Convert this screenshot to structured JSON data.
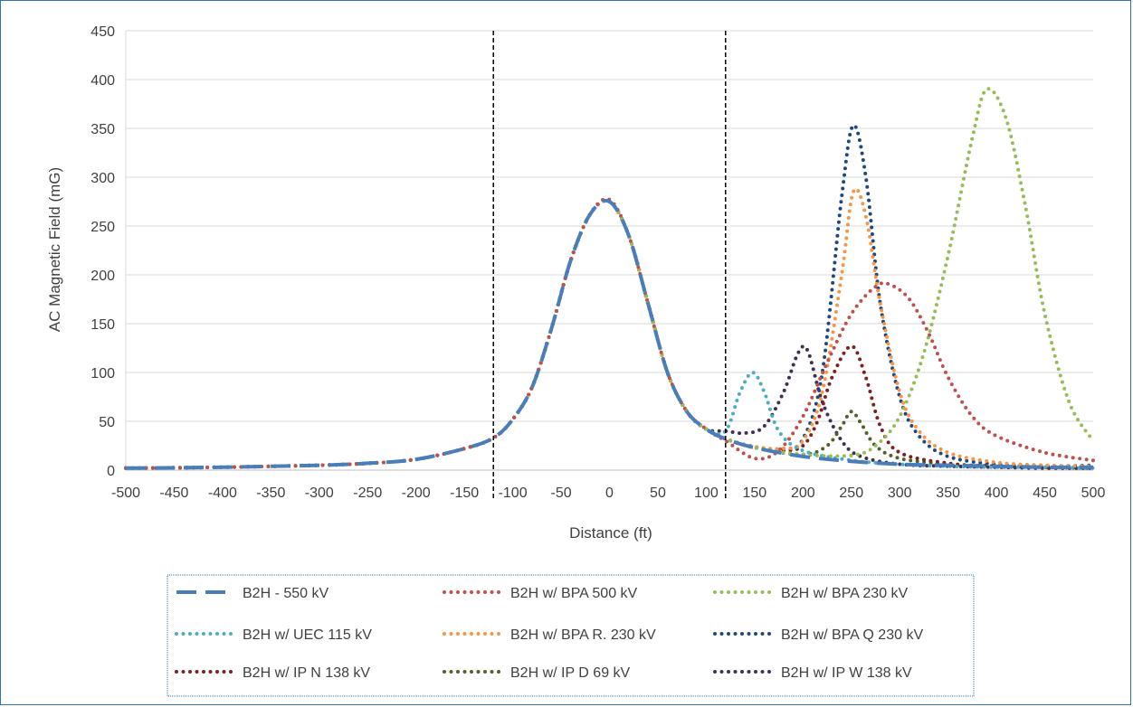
{
  "chart_data": {
    "type": "line",
    "title": "",
    "xlabel": "Distance (ft)",
    "ylabel": "AC Magnetic Field (mG)",
    "xlim": [
      -500,
      500
    ],
    "ylim": [
      0,
      450
    ],
    "x_ticks": [
      -500,
      -450,
      -400,
      -350,
      -300,
      -250,
      -200,
      -150,
      -100,
      -50,
      0,
      50,
      100,
      150,
      200,
      250,
      300,
      350,
      400,
      450,
      500
    ],
    "y_ticks": [
      0,
      50,
      100,
      150,
      200,
      250,
      300,
      350,
      400,
      450
    ],
    "grid": "horizontal",
    "legend_position": "bottom",
    "vertical_markers": [
      -120,
      120
    ],
    "series": [
      {
        "name": "B2H - 550 kV",
        "color": "#4a7ebb",
        "style": "dash",
        "x": [
          -500,
          -400,
          -300,
          -250,
          -200,
          -150,
          -120,
          -100,
          -80,
          -60,
          -40,
          -20,
          0,
          20,
          40,
          60,
          80,
          100,
          120,
          150,
          200,
          250,
          300,
          350,
          400,
          450,
          500
        ],
        "y": [
          2,
          3,
          5,
          7,
          11,
          22,
          33,
          52,
          85,
          145,
          215,
          262,
          275,
          240,
          170,
          100,
          60,
          42,
          32,
          23,
          14,
          9,
          6,
          5,
          4,
          3,
          3
        ]
      },
      {
        "name": "B2H w/ BPA 500 kV",
        "color": "#c0504d",
        "style": "dot",
        "x": [
          -500,
          -400,
          -300,
          -250,
          -200,
          -150,
          -120,
          -100,
          -80,
          -60,
          -40,
          -20,
          0,
          20,
          40,
          60,
          80,
          100,
          120,
          150,
          175,
          200,
          225,
          250,
          275,
          290,
          310,
          330,
          350,
          375,
          400,
          450,
          500
        ],
        "y": [
          2,
          3,
          5,
          7,
          11,
          22,
          33,
          52,
          85,
          145,
          215,
          262,
          277,
          240,
          170,
          100,
          60,
          42,
          30,
          12,
          20,
          55,
          110,
          160,
          188,
          190,
          175,
          140,
          95,
          55,
          35,
          18,
          10
        ]
      },
      {
        "name": "B2H w/ BPA 230 kV",
        "color": "#9bbb59",
        "style": "dot",
        "x": [
          -500,
          -400,
          -300,
          -250,
          -200,
          -150,
          -120,
          -100,
          -80,
          -60,
          -40,
          -20,
          0,
          20,
          40,
          60,
          80,
          100,
          120,
          150,
          200,
          250,
          275,
          300,
          325,
          350,
          375,
          390,
          410,
          430,
          450,
          475,
          500
        ],
        "y": [
          2,
          3,
          5,
          7,
          11,
          22,
          33,
          52,
          85,
          145,
          215,
          262,
          275,
          240,
          170,
          100,
          60,
          42,
          32,
          23,
          16,
          15,
          25,
          55,
          120,
          220,
          340,
          390,
          360,
          270,
          160,
          70,
          30
        ]
      },
      {
        "name": "B2H w/ UEC 115 kV",
        "color": "#4bacc6",
        "style": "dot",
        "x": [
          -500,
          -400,
          -300,
          -250,
          -200,
          -150,
          -120,
          -100,
          -80,
          -60,
          -40,
          -20,
          0,
          20,
          40,
          60,
          80,
          100,
          120,
          135,
          148,
          160,
          175,
          200,
          250,
          300,
          350,
          400,
          450,
          500
        ],
        "y": [
          2,
          3,
          5,
          7,
          11,
          22,
          33,
          52,
          85,
          145,
          215,
          262,
          275,
          240,
          170,
          100,
          60,
          42,
          40,
          80,
          100,
          80,
          40,
          20,
          10,
          6,
          4,
          3,
          3,
          2
        ]
      },
      {
        "name": "B2H w/ BPA R. 230 kV",
        "color": "#f79646",
        "style": "dot",
        "x": [
          -500,
          -400,
          -300,
          -250,
          -200,
          -150,
          -120,
          -100,
          -80,
          -60,
          -40,
          -20,
          0,
          20,
          40,
          60,
          80,
          100,
          120,
          150,
          180,
          200,
          220,
          240,
          252,
          265,
          280,
          300,
          320,
          350,
          400,
          450,
          500
        ],
        "y": [
          2,
          3,
          5,
          7,
          11,
          22,
          33,
          52,
          85,
          145,
          215,
          262,
          275,
          240,
          170,
          100,
          60,
          42,
          32,
          24,
          22,
          30,
          80,
          200,
          285,
          260,
          170,
          80,
          40,
          18,
          8,
          5,
          4
        ]
      },
      {
        "name": "B2H w/ BPA Q 230 kV",
        "color": "#1f497d",
        "style": "dot",
        "x": [
          -500,
          -400,
          -300,
          -250,
          -200,
          -150,
          -120,
          -100,
          -80,
          -60,
          -40,
          -20,
          0,
          20,
          40,
          60,
          80,
          100,
          120,
          150,
          180,
          200,
          220,
          240,
          252,
          265,
          280,
          300,
          320,
          350,
          400,
          450,
          500
        ],
        "y": [
          2,
          3,
          5,
          7,
          11,
          22,
          33,
          52,
          85,
          145,
          215,
          262,
          275,
          240,
          170,
          100,
          60,
          42,
          32,
          24,
          22,
          32,
          100,
          280,
          353,
          300,
          170,
          75,
          35,
          14,
          6,
          4,
          5
        ]
      },
      {
        "name": "B2H w/ IP N 138 kV",
        "color": "#7f2020",
        "style": "dot",
        "x": [
          -500,
          -400,
          -300,
          -250,
          -200,
          -150,
          -120,
          -100,
          -80,
          -60,
          -40,
          -20,
          0,
          20,
          40,
          60,
          80,
          100,
          120,
          150,
          180,
          200,
          215,
          230,
          250,
          265,
          280,
          300,
          350,
          400,
          450,
          500
        ],
        "y": [
          2,
          3,
          5,
          7,
          11,
          22,
          33,
          52,
          85,
          145,
          215,
          262,
          275,
          240,
          170,
          100,
          60,
          42,
          32,
          24,
          20,
          25,
          50,
          95,
          127,
          95,
          45,
          18,
          7,
          4,
          3,
          2
        ]
      },
      {
        "name": "B2H w/ IP D 69 kV",
        "color": "#4f6228",
        "style": "dot",
        "x": [
          -500,
          -400,
          -300,
          -250,
          -200,
          -150,
          -120,
          -100,
          -80,
          -60,
          -40,
          -20,
          0,
          20,
          40,
          60,
          80,
          100,
          120,
          150,
          200,
          225,
          240,
          250,
          260,
          275,
          300,
          350,
          400,
          450,
          500
        ],
        "y": [
          2,
          3,
          5,
          7,
          11,
          22,
          33,
          52,
          85,
          145,
          215,
          262,
          275,
          240,
          170,
          100,
          60,
          42,
          32,
          23,
          16,
          25,
          45,
          60,
          48,
          25,
          12,
          6,
          4,
          3,
          2
        ]
      },
      {
        "name": "B2H w/ IP W 138 kV",
        "color": "#403152",
        "style": "dot",
        "x": [
          -500,
          -400,
          -300,
          -250,
          -200,
          -150,
          -120,
          -100,
          -80,
          -60,
          -40,
          -20,
          0,
          20,
          40,
          60,
          80,
          100,
          120,
          140,
          160,
          180,
          195,
          205,
          220,
          240,
          260,
          300,
          350,
          400,
          450,
          500
        ],
        "y": [
          2,
          3,
          5,
          7,
          11,
          22,
          33,
          52,
          85,
          145,
          215,
          262,
          275,
          240,
          170,
          100,
          60,
          42,
          40,
          38,
          45,
          80,
          120,
          122,
          70,
          30,
          14,
          6,
          4,
          3,
          2,
          2
        ]
      }
    ]
  }
}
